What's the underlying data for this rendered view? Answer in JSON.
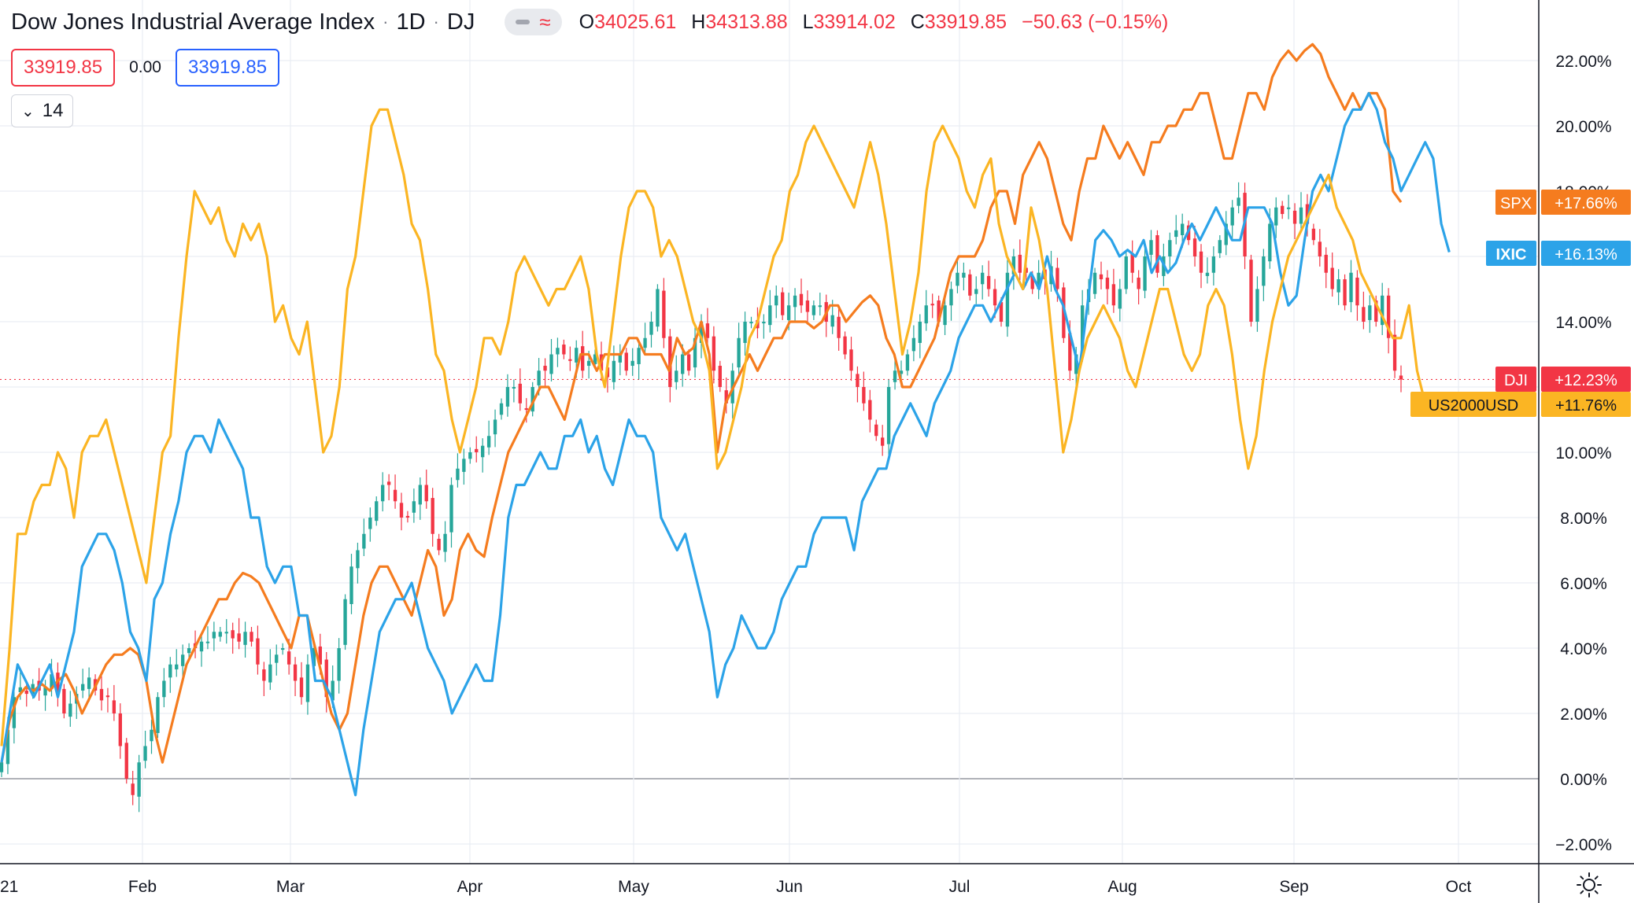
{
  "header": {
    "title": "Dow Jones Industrial Average Index",
    "interval": "1D",
    "exchange": "DJ",
    "ohlc": {
      "open_label": "O",
      "open": "34025.61",
      "high_label": "H",
      "high": "34313.88",
      "low_label": "L",
      "low": "33914.02",
      "close_label": "C",
      "close": "33919.85",
      "change": "−50.63 (−0.15%)"
    }
  },
  "price_row": {
    "sell": "33919.85",
    "spread": "0.00",
    "buy": "33919.85"
  },
  "indicators": {
    "collapsed_count": "14"
  },
  "icons": {
    "toggle_left": "line-style-icon",
    "toggle_right": "wave-icon",
    "chevron": "chevron-down-icon",
    "settings": "settings-sun-icon"
  },
  "colors": {
    "up": "#26a69a",
    "down": "#f23645",
    "spx": "#f57c1f",
    "ixic": "#2ca3e8",
    "rut": "#fbb523",
    "last_price_line": "#f23645"
  },
  "chart_data": {
    "type": "line",
    "title": "Dow Jones Industrial Average Index",
    "x_tick_labels": [
      "21",
      "Feb",
      "Mar",
      "Apr",
      "May",
      "Jun",
      "Jul",
      "Aug",
      "Sep",
      "Oct"
    ],
    "y_tick_labels": [
      "22.00%",
      "20.00%",
      "18.00%",
      "16.00%",
      "14.00%",
      "12.00%",
      "10.00%",
      "8.00%",
      "6.00%",
      "4.00%",
      "2.00%",
      "0.00%",
      "−2.00%"
    ],
    "ylim": [
      -2.5,
      23.5
    ],
    "grid": true,
    "x_period": "2021-01-04 to 2021-09-17 (trading days)",
    "series": [
      {
        "name": "SPX",
        "label": "SPX",
        "badge": "+17.66%",
        "color": "#f57c1f",
        "values": [
          0.5,
          1.8,
          2.5,
          2.8,
          2.7,
          2.9,
          2.7,
          3.0,
          3.2,
          2.7,
          2.0,
          2.5,
          3.0,
          3.5,
          3.8,
          3.8,
          4.0,
          3.8,
          3.0,
          1.5,
          0.5,
          1.5,
          2.5,
          3.5,
          4.0,
          4.5,
          5.0,
          5.5,
          5.5,
          6.0,
          6.3,
          6.2,
          6.0,
          5.5,
          5.0,
          4.5,
          4.0,
          5.0,
          5.0,
          4.0,
          3.0,
          2.0,
          1.5,
          2.0,
          3.5,
          5.0,
          6.0,
          6.5,
          6.5,
          6.0,
          5.5,
          5.0,
          6.0,
          7.0,
          6.5,
          5.0,
          5.5,
          7.0,
          7.5,
          7.0,
          6.8,
          8.0,
          9.0,
          10.0,
          10.5,
          11.0,
          11.5,
          12.0,
          12.0,
          11.5,
          11.0,
          12.0,
          13.0,
          13.0,
          12.5,
          13.0,
          13.0,
          13.0,
          13.5,
          13.5,
          13.0,
          13.0,
          13.0,
          12.5,
          13.5,
          13.0,
          13.2,
          14.0,
          13.0,
          10.0,
          11.5,
          12.0,
          12.5,
          13.0,
          12.5,
          13.0,
          13.5,
          13.5,
          14.0,
          14.0,
          14.0,
          13.8,
          14.0,
          14.5,
          14.5,
          14.0,
          14.3,
          14.6,
          14.8,
          14.5,
          13.5,
          13.0,
          12.0,
          12.0,
          12.5,
          13.0,
          13.5,
          14.5,
          15.5,
          16.0,
          16.0,
          16.0,
          16.5,
          17.5,
          18.0,
          18.0,
          17.0,
          18.5,
          19.0,
          19.5,
          19.0,
          18.0,
          17.0,
          16.5,
          18.0,
          19.0,
          19.0,
          20.0,
          19.5,
          19.0,
          19.5,
          19.0,
          18.5,
          19.5,
          19.5,
          20.0,
          20.0,
          20.5,
          20.5,
          21.0,
          21.0,
          20.0,
          19.0,
          19.0,
          20.0,
          21.0,
          21.0,
          20.5,
          21.5,
          22.0,
          22.3,
          22.0,
          22.3,
          22.5,
          22.2,
          21.5,
          21.0,
          20.5,
          21.0,
          20.5,
          21.0,
          21.0,
          20.5,
          18.0,
          17.66
        ]
      },
      {
        "name": "IXIC",
        "label": "IXIC",
        "badge": "+16.13%",
        "color": "#2ca3e8",
        "values": [
          0.5,
          2.0,
          3.5,
          3.0,
          2.5,
          3.0,
          3.5,
          2.5,
          3.5,
          4.5,
          6.5,
          7.0,
          7.5,
          7.5,
          7.0,
          6.0,
          4.5,
          4.0,
          3.0,
          5.5,
          6.0,
          7.5,
          8.5,
          10.0,
          10.5,
          10.5,
          10.0,
          11.0,
          10.5,
          10.0,
          9.5,
          8.0,
          8.0,
          6.5,
          6.0,
          6.5,
          6.5,
          5.0,
          5.0,
          3.0,
          3.0,
          2.5,
          1.5,
          0.5,
          -0.5,
          1.5,
          3.0,
          4.5,
          5.0,
          5.5,
          5.5,
          6.0,
          5.0,
          4.0,
          3.5,
          3.0,
          2.0,
          2.5,
          3.0,
          3.5,
          3.0,
          3.0,
          5.0,
          8.0,
          9.0,
          9.0,
          9.5,
          10.0,
          9.5,
          9.5,
          10.5,
          10.5,
          11.0,
          10.0,
          10.5,
          9.5,
          9.0,
          10.0,
          11.0,
          10.5,
          10.5,
          10.0,
          8.0,
          7.5,
          7.0,
          7.5,
          6.5,
          5.5,
          4.5,
          2.5,
          3.5,
          4.0,
          5.0,
          4.5,
          4.0,
          4.0,
          4.5,
          5.5,
          6.0,
          6.5,
          6.5,
          7.5,
          8.0,
          8.0,
          8.0,
          8.0,
          7.0,
          8.5,
          9.0,
          9.5,
          9.5,
          10.5,
          11.0,
          11.5,
          11.0,
          10.5,
          11.5,
          12.0,
          12.5,
          13.5,
          14.0,
          14.5,
          14.5,
          14.0,
          14.5,
          15.0,
          15.5,
          15.0,
          15.5,
          15.0,
          16.0,
          15.0,
          14.5,
          13.5,
          12.5,
          14.5,
          16.5,
          16.8,
          16.5,
          16.0,
          16.2,
          16.0,
          16.5,
          15.5,
          16.0,
          15.5,
          15.8,
          16.5,
          17.0,
          16.5,
          17.0,
          17.5,
          17.0,
          16.5,
          16.5,
          17.5,
          17.5,
          17.5,
          17.0,
          15.5,
          14.5,
          14.8,
          16.5,
          18.0,
          18.5,
          18.0,
          19.0,
          20.0,
          20.5,
          20.5,
          21.0,
          20.5,
          19.5,
          19.0,
          18.0,
          18.5,
          19.0,
          19.5,
          19.0,
          17.0,
          16.13
        ]
      },
      {
        "name": "US2000USD",
        "label": "US2000USD",
        "badge": "+11.76%",
        "color": "#fbb523",
        "values": [
          1.0,
          4.0,
          7.5,
          7.5,
          8.5,
          9.0,
          9.0,
          10.0,
          9.5,
          8.0,
          10.0,
          10.5,
          10.5,
          11.0,
          10.0,
          9.0,
          8.0,
          7.0,
          6.0,
          8.0,
          10.0,
          10.5,
          13.5,
          16.0,
          18.0,
          17.5,
          17.0,
          17.5,
          16.5,
          16.0,
          17.0,
          16.5,
          17.0,
          16.0,
          14.0,
          14.5,
          13.5,
          13.0,
          14.0,
          12.0,
          10.0,
          10.5,
          12.0,
          15.0,
          16.0,
          18.0,
          20.0,
          20.5,
          20.5,
          19.5,
          18.5,
          17.0,
          16.5,
          15.0,
          13.0,
          12.5,
          11.0,
          10.0,
          11.0,
          12.0,
          13.5,
          13.5,
          13.0,
          14.0,
          15.5,
          16.0,
          15.5,
          15.0,
          14.5,
          15.0,
          15.0,
          15.5,
          16.0,
          15.0,
          13.0,
          12.0,
          14.0,
          16.0,
          17.5,
          18.0,
          18.0,
          17.5,
          16.0,
          16.5,
          16.0,
          15.0,
          14.0,
          13.5,
          12.5,
          9.5,
          10.0,
          11.0,
          12.0,
          13.5,
          14.0,
          15.0,
          16.0,
          16.5,
          18.0,
          18.5,
          19.5,
          20.0,
          19.5,
          19.0,
          18.5,
          18.0,
          17.5,
          18.5,
          19.5,
          18.5,
          17.0,
          15.0,
          13.0,
          14.0,
          15.5,
          18.0,
          19.5,
          20.0,
          19.5,
          19.0,
          18.0,
          17.5,
          18.5,
          19.0,
          17.0,
          16.0,
          15.5,
          15.0,
          17.5,
          16.5,
          15.0,
          12.5,
          10.0,
          11.0,
          12.5,
          13.5,
          14.0,
          14.5,
          14.0,
          13.5,
          12.5,
          12.0,
          13.0,
          14.0,
          15.0,
          15.0,
          14.0,
          13.0,
          12.5,
          13.0,
          14.5,
          15.0,
          14.5,
          13.0,
          11.0,
          9.5,
          10.5,
          12.5,
          14.0,
          15.0,
          16.0,
          16.5,
          17.0,
          17.5,
          18.0,
          18.5,
          17.5,
          17.0,
          16.5,
          15.5,
          15.0,
          14.5,
          14.0,
          13.5,
          13.5,
          14.5,
          12.5,
          11.5,
          11.76
        ]
      },
      {
        "name": "DJI",
        "label": "DJI",
        "badge": "+12.23%",
        "color": "#26a69a",
        "chart_type": "candlestick",
        "values": [
          0.5,
          1.5,
          2.5,
          2.8,
          2.6,
          2.9,
          2.7,
          2.8,
          3.2,
          2.6,
          2.0,
          2.3,
          2.6,
          2.9,
          3.1,
          2.7,
          2.4,
          2.5,
          2.0,
          1.0,
          0.0,
          -0.5,
          0.5,
          1.0,
          1.5,
          2.5,
          3.0,
          3.5,
          3.5,
          3.8,
          4.0,
          4.0,
          4.2,
          4.2,
          4.5,
          4.5,
          4.5,
          4.3,
          4.2,
          4.5,
          4.2,
          3.5,
          3.0,
          3.5,
          3.8,
          4.0,
          3.5,
          3.0,
          2.5,
          3.5,
          4.0,
          3.5,
          2.5,
          3.0,
          4.0,
          5.5,
          6.5,
          7.0,
          7.5,
          8.0,
          8.5,
          9.0,
          9.0,
          8.5,
          8.0,
          8.0,
          8.5,
          9.0,
          8.5,
          7.5,
          7.0,
          7.5,
          9.0,
          9.5,
          9.8,
          10.0,
          10.0,
          10.2,
          10.5,
          11.0,
          11.5,
          12.0,
          12.0,
          11.5,
          11.3,
          12.0,
          12.5,
          12.5,
          13.0,
          13.2,
          13.0,
          12.8,
          13.2,
          12.5,
          12.8,
          13.0,
          12.5,
          12.3,
          12.8,
          13.0,
          12.5,
          12.8,
          13.2,
          13.5,
          14.0,
          15.0,
          13.5,
          12.0,
          12.5,
          13.0,
          12.5,
          13.5,
          14.0,
          13.5,
          12.5,
          12.0,
          11.5,
          12.5,
          13.5,
          14.0,
          14.0,
          13.8,
          14.0,
          14.5,
          14.8,
          14.2,
          14.5,
          14.8,
          14.5,
          14.3,
          14.5,
          14.5,
          14.0,
          14.2,
          13.5,
          13.0,
          12.5,
          12.0,
          11.5,
          11.0,
          10.5,
          10.2,
          12.0,
          12.5,
          12.5,
          13.0,
          13.5,
          14.0,
          14.5,
          14.5,
          14.0,
          14.5,
          15.0,
          15.5,
          15.5,
          14.8,
          15.0,
          15.5,
          15.0,
          14.5,
          14.0,
          15.5,
          16.0,
          15.5,
          15.5,
          15.0,
          15.5,
          15.3,
          15.7,
          15.0,
          13.5,
          12.5,
          13.0,
          14.5,
          15.0,
          15.5,
          15.3,
          15.0,
          14.5,
          15.0,
          16.0,
          15.5,
          15.0,
          16.0,
          16.5,
          15.5,
          16.0,
          16.5,
          16.8,
          17.0,
          16.5,
          16.0,
          15.5,
          15.5,
          16.0,
          16.5,
          17.0,
          17.5,
          17.8,
          16.0,
          14.0,
          15.0,
          16.0,
          17.0,
          17.5,
          17.3,
          17.5,
          17.0,
          17.5,
          17.0,
          16.5,
          16.0,
          15.5,
          15.0,
          15.3,
          14.5,
          15.5,
          14.5,
          14.0,
          14.5,
          14.0,
          14.8,
          13.5,
          12.5,
          12.23
        ]
      }
    ],
    "last_price_line": 12.23
  }
}
